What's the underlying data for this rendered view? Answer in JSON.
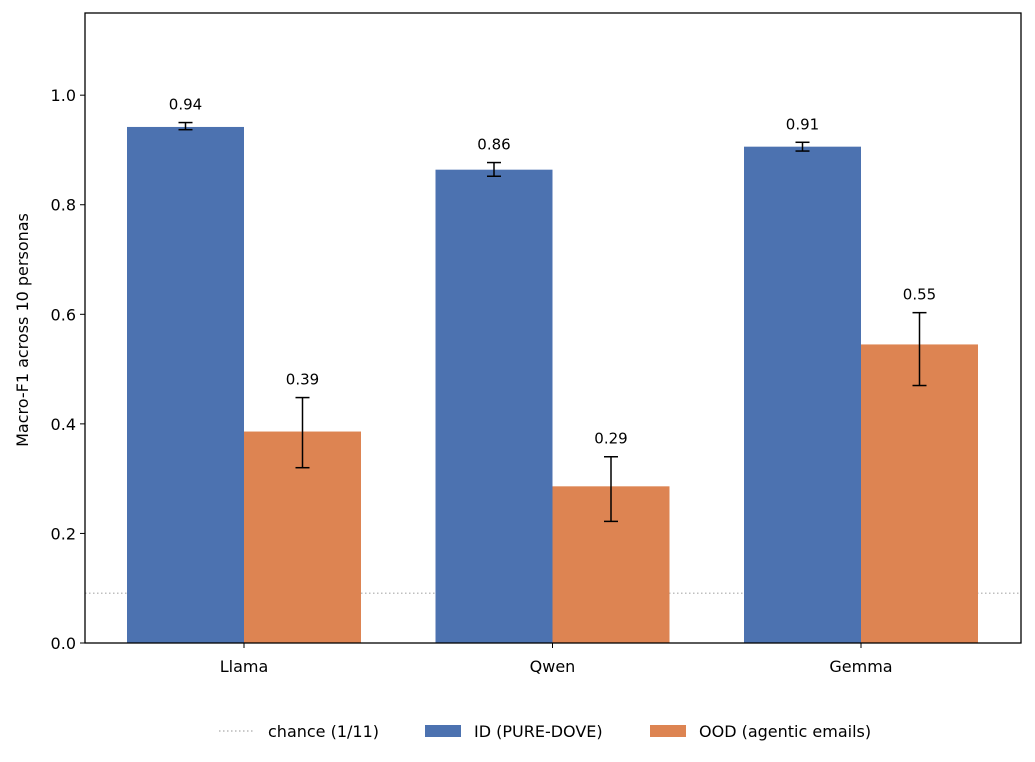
{
  "chart_data": {
    "type": "bar",
    "categories": [
      "Llama",
      "Qwen",
      "Gemma"
    ],
    "series": [
      {
        "name": "ID (PURE-DOVE)",
        "color": "#4c72b0",
        "values": [
          0.942,
          0.864,
          0.906
        ],
        "labels": [
          "0.94",
          "0.86",
          "0.91"
        ],
        "err_low": [
          0.937,
          0.852,
          0.898
        ],
        "err_high": [
          0.95,
          0.877,
          0.914
        ]
      },
      {
        "name": "OOD (agentic emails)",
        "color": "#dd8452",
        "values": [
          0.386,
          0.286,
          0.545
        ],
        "labels": [
          "0.39",
          "0.29",
          "0.55"
        ],
        "err_low": [
          0.32,
          0.222,
          0.47
        ],
        "err_high": [
          0.448,
          0.34,
          0.603
        ]
      }
    ],
    "reference_line": {
      "name": "chance (1/11)",
      "value": 0.0909,
      "color": "#aaaaaa",
      "style": "dotted"
    },
    "xlabel": "",
    "ylabel": "Macro-F1 across 10 personas",
    "ylim": [
      0,
      1.15
    ],
    "yticks": [
      0.0,
      0.2,
      0.4,
      0.6,
      0.8,
      1.0
    ],
    "ytick_labels": [
      "0.0",
      "0.2",
      "0.4",
      "0.6",
      "0.8",
      "1.0"
    ],
    "legend": {
      "placement": "bottom-center",
      "entries": [
        "chance (1/11)",
        "ID (PURE-DOVE)",
        "OOD (agentic emails)"
      ]
    },
    "grid": false
  }
}
